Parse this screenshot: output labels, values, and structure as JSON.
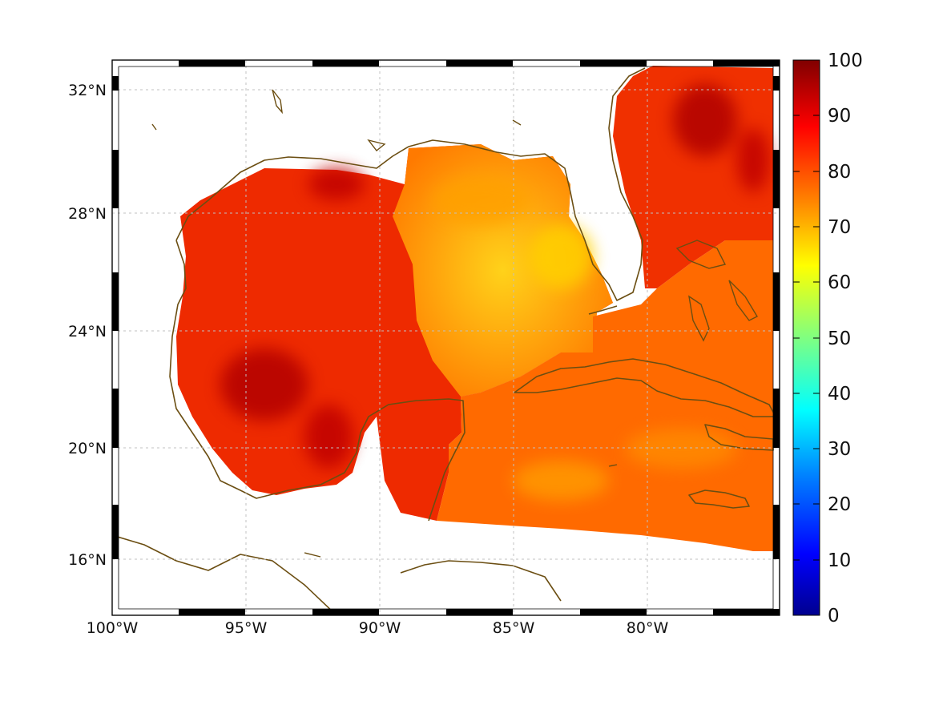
{
  "map": {
    "longitude_labels": [
      "100°W",
      "95°W",
      "90°W",
      "85°W",
      "80°W"
    ],
    "latitude_labels": [
      "32°N",
      "28°N",
      "24°N",
      "20°N",
      "16°N"
    ],
    "grid": true,
    "coastline_color": "#6b4e12",
    "colormap": "jet",
    "field_range": [
      0,
      100
    ],
    "field_description_values": {
      "western_gulf": 90,
      "eastern_gulf": 78,
      "caribbean": 80,
      "atlantic": 88
    }
  },
  "colorbar": {
    "labels": [
      "100",
      "90",
      "80",
      "70",
      "60",
      "50",
      "40",
      "30",
      "20",
      "10",
      "0"
    ],
    "stops": [
      "#00008f",
      "#0000ff",
      "#0080ff",
      "#00ffff",
      "#80ff80",
      "#ffff00",
      "#ff8000",
      "#ff0000",
      "#800000"
    ]
  }
}
